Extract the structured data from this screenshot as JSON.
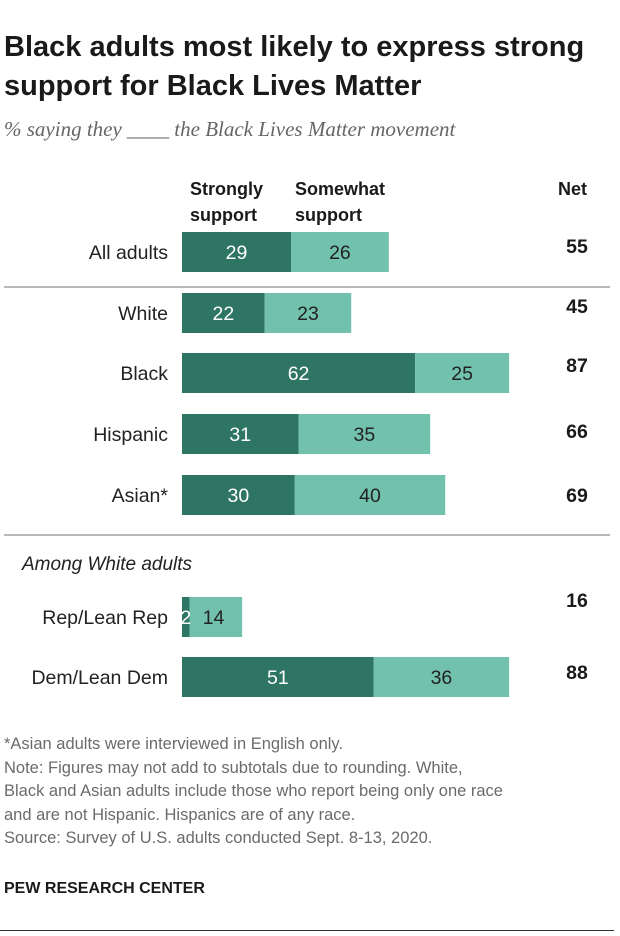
{
  "title": "Black adults most likely to express strong support for Black Lives Matter",
  "subtitle": "% saying they ____ the Black Lives Matter movement",
  "headers": {
    "strong_line1": "Strongly",
    "strong_line2": "support",
    "somewhat_line1": "Somewhat",
    "somewhat_line2": "support",
    "net": "Net"
  },
  "colors": {
    "strongly": "#2e7563",
    "somewhat": "#71c1ad",
    "divider": "#b8b8b8"
  },
  "chart_data": {
    "type": "bar",
    "orientation": "horizontal",
    "stacked": true,
    "categories": [
      "All adults",
      "White",
      "Black",
      "Hispanic",
      "Asian*",
      "Rep/Lean Rep",
      "Dem/Lean Dem"
    ],
    "series": [
      {
        "name": "Strongly support",
        "values": [
          29,
          22,
          62,
          31,
          30,
          2,
          51
        ]
      },
      {
        "name": "Somewhat support",
        "values": [
          26,
          23,
          25,
          35,
          40,
          14,
          36
        ]
      }
    ],
    "net": [
      55,
      45,
      87,
      66,
      69,
      16,
      88
    ],
    "group_label": "Among White adults"
  },
  "footnotes": [
    "*Asian adults were interviewed in English only.",
    "Note: Figures may not add to subtotals due to rounding. White,",
    "Black and Asian adults include those who report being only one race",
    "and are not Hispanic. Hispanics are of any race.",
    "Source: Survey of U.S. adults conducted Sept. 8-13, 2020."
  ],
  "org": "PEW RESEARCH CENTER"
}
